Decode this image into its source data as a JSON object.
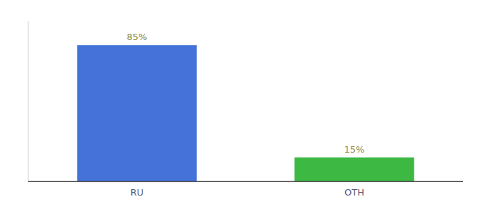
{
  "chart_data": {
    "type": "bar",
    "categories": [
      "RU",
      "OTH"
    ],
    "values": [
      85,
      15
    ],
    "value_labels": [
      "85%",
      "15%"
    ],
    "colors": [
      "#4472d9",
      "#3cb843"
    ],
    "ylim": [
      0,
      100
    ],
    "data_labels": true,
    "tick_labels": "x",
    "grid": false
  }
}
